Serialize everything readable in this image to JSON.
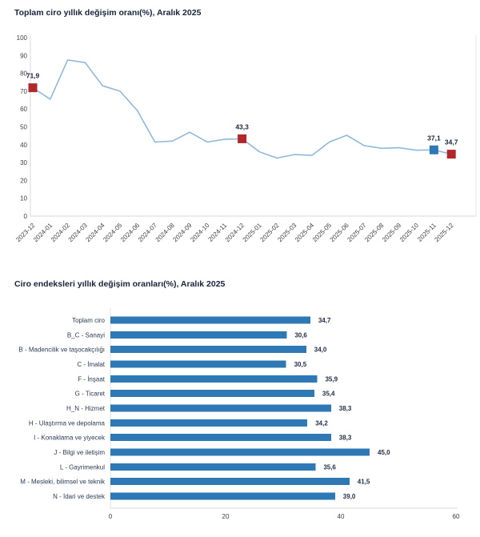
{
  "chart_data": [
    {
      "type": "line",
      "title": "Toplam ciro yıllık değişim oranı(%), Aralık 2025",
      "x": [
        "2023-12",
        "2024-01",
        "2024-02",
        "2024-03",
        "2024-04",
        "2024-05",
        "2024-06",
        "2024-07",
        "2024-08",
        "2024-09",
        "2024-10",
        "2024-11",
        "2024-12",
        "2025-01",
        "2025-02",
        "2025-03",
        "2025-04",
        "2025-05",
        "2025-06",
        "2025-07",
        "2025-08",
        "2025-09",
        "2025-10",
        "2025-11",
        "2025-12"
      ],
      "values": [
        71.9,
        65.5,
        87.5,
        86.0,
        73.0,
        70.0,
        59.0,
        41.5,
        42.0,
        47.0,
        41.5,
        43.0,
        43.3,
        36.0,
        32.5,
        34.5,
        34.0,
        41.5,
        45.3,
        39.5,
        38.0,
        38.3,
        36.9,
        37.1,
        34.7
      ],
      "ylim": [
        0,
        100
      ],
      "ytick_step": 10,
      "grid": false,
      "legend": "none",
      "line_color": "#8fb8db",
      "highlights": [
        {
          "index": 0,
          "label": "71,9",
          "color": "#b0282c"
        },
        {
          "index": 12,
          "label": "43,3",
          "color": "#b0282c"
        },
        {
          "index": 23,
          "label": "37,1",
          "color": "#2e79b5"
        },
        {
          "index": 24,
          "label": "34,7",
          "color": "#b0282c"
        }
      ]
    },
    {
      "type": "bar",
      "orientation": "horizontal",
      "title": "Ciro endeksleri yıllık değişim oranları(%), Aralık 2025",
      "categories": [
        "Toplam ciro",
        "B_C - Sanayi",
        "B - Madencilik ve taşocakçılığı",
        "C - İmalat",
        "F - İnşaat",
        "G - Ticaret",
        "H_N - Hizmet",
        "H - Ulaştırma ve depolama",
        "I - Konaklama ve yiyecek",
        "J - Bilgi ve iletişim",
        "L - Gayrimenkul",
        "M - Mesleki, bilimsel ve teknik",
        "N - İdari ve destek"
      ],
      "values": [
        34.7,
        30.6,
        34.0,
        30.5,
        35.9,
        35.4,
        38.3,
        34.2,
        38.3,
        45.0,
        35.6,
        41.5,
        39.0
      ],
      "value_labels": [
        "34,7",
        "30,6",
        "34,0",
        "30,5",
        "35,9",
        "35,4",
        "38,3",
        "34,2",
        "38,3",
        "45,0",
        "35,6",
        "41,5",
        "39,0"
      ],
      "xlim": [
        0,
        60
      ],
      "xticks": [
        0,
        20,
        40,
        60
      ],
      "grid": false,
      "legend": "none",
      "bar_color": "#2e79b5"
    }
  ]
}
